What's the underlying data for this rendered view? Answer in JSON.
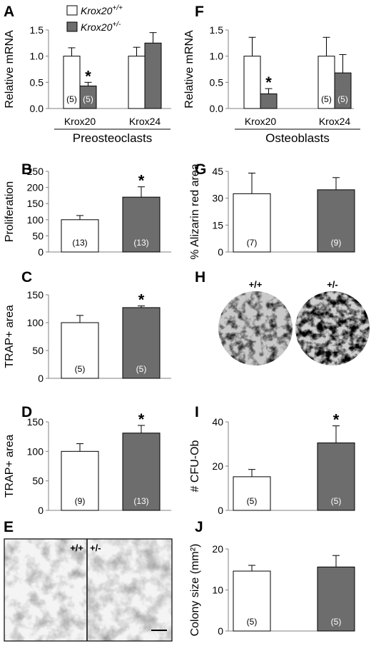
{
  "legend": {
    "wt_base": "Krox20",
    "wt_sup": "+/+",
    "het_base": "Krox20",
    "het_sup": "+/-"
  },
  "colors": {
    "wt": "#ffffff",
    "het": "#6d6d6d",
    "axis": "#808080",
    "text": "#000000"
  },
  "micrograph_labels": {
    "E_wt": "+/+",
    "E_het": "+/-",
    "H_wt": "+/+",
    "H_het": "+/-"
  },
  "chart_data": [
    {
      "panel": "A",
      "type": "bar",
      "ylabel": "Relative mRNA",
      "ylim": [
        0,
        1.5
      ],
      "yticks": [
        "0.0",
        "0.5",
        "1.0",
        "1.5"
      ],
      "categories": [
        "Krox20",
        "Krox24"
      ],
      "group_label": "Preosteoclasts",
      "series": [
        {
          "name": "Krox20+/+",
          "values": [
            1.0,
            1.0
          ],
          "errors": [
            0.16,
            0.17
          ],
          "n": [
            "(5)",
            ""
          ]
        },
        {
          "name": "Krox20+/-",
          "values": [
            0.43,
            1.25
          ],
          "errors": [
            0.07,
            0.2
          ],
          "n": [
            "(5)",
            ""
          ],
          "sig": [
            "*",
            ""
          ]
        }
      ]
    },
    {
      "panel": "F",
      "type": "bar",
      "ylabel": "Relative mRNA",
      "ylim": [
        0,
        1.5
      ],
      "yticks": [
        "0.0",
        "0.5",
        "1.0",
        "1.5"
      ],
      "categories": [
        "Krox20",
        "Krox24"
      ],
      "group_label": "Osteoblasts",
      "series": [
        {
          "name": "Krox20+/+",
          "values": [
            1.0,
            1.0
          ],
          "errors": [
            0.36,
            0.36
          ],
          "n": [
            "",
            "(5)"
          ]
        },
        {
          "name": "Krox20+/-",
          "values": [
            0.28,
            0.68
          ],
          "errors": [
            0.1,
            0.35
          ],
          "n": [
            "",
            "(5)"
          ],
          "sig": [
            "*",
            ""
          ]
        }
      ]
    },
    {
      "panel": "B",
      "type": "bar",
      "ylabel": "Proliferation",
      "ylim": [
        0,
        250
      ],
      "yticks": [
        "0",
        "50",
        "100",
        "150",
        "200",
        "250"
      ],
      "series": [
        {
          "name": "Krox20+/+",
          "values": [
            100
          ],
          "errors": [
            13
          ],
          "n": [
            "(13)"
          ]
        },
        {
          "name": "Krox20+/-",
          "values": [
            170
          ],
          "errors": [
            32
          ],
          "n": [
            "(13)"
          ],
          "sig": [
            "*"
          ]
        }
      ]
    },
    {
      "panel": "G",
      "type": "bar",
      "ylabel": "% Alizarin red area",
      "ylim": [
        0,
        45
      ],
      "yticks": [
        "0",
        "15",
        "30",
        "45"
      ],
      "series": [
        {
          "name": "Krox20+/+",
          "values": [
            32.5
          ],
          "errors": [
            11.5
          ],
          "n": [
            "(7)"
          ]
        },
        {
          "name": "Krox20+/-",
          "values": [
            34.7
          ],
          "errors": [
            6.8
          ],
          "n": [
            "(9)"
          ]
        }
      ]
    },
    {
      "panel": "C",
      "type": "bar",
      "ylabel": "TRAP+ area",
      "ylim": [
        0,
        150
      ],
      "yticks": [
        "0",
        "50",
        "100",
        "150"
      ],
      "series": [
        {
          "name": "Krox20+/+",
          "values": [
            100
          ],
          "errors": [
            13
          ],
          "n": [
            "(5)"
          ]
        },
        {
          "name": "Krox20+/-",
          "values": [
            127
          ],
          "errors": [
            3
          ],
          "n": [
            "(5)"
          ],
          "sig": [
            "*"
          ]
        }
      ]
    },
    {
      "panel": "D",
      "type": "bar",
      "ylabel": "TRAP+ area",
      "ylim": [
        0,
        150
      ],
      "yticks": [
        "0",
        "50",
        "100",
        "150"
      ],
      "series": [
        {
          "name": "Krox20+/+",
          "values": [
            100
          ],
          "errors": [
            13
          ],
          "n": [
            "(9)"
          ]
        },
        {
          "name": "Krox20+/-",
          "values": [
            131
          ],
          "errors": [
            13
          ],
          "n": [
            "(13)"
          ],
          "sig": [
            "*"
          ]
        }
      ]
    },
    {
      "panel": "I",
      "type": "bar",
      "ylabel": "# CFU-Ob",
      "ylim": [
        0,
        40
      ],
      "yticks": [
        "0",
        "20",
        "40"
      ],
      "series": [
        {
          "name": "Krox20+/+",
          "values": [
            15.2
          ],
          "errors": [
            3.3
          ],
          "n": [
            "(5)"
          ]
        },
        {
          "name": "Krox20+/-",
          "values": [
            30.5
          ],
          "errors": [
            7.7
          ],
          "n": [
            "(5)"
          ],
          "sig": [
            "*"
          ]
        }
      ]
    },
    {
      "panel": "J",
      "type": "bar",
      "ylabel": "Colony size (mm²)",
      "ylim": [
        0,
        20
      ],
      "yticks": [
        "0",
        "10",
        "20"
      ],
      "series": [
        {
          "name": "Krox20+/+",
          "values": [
            14.6
          ],
          "errors": [
            1.4
          ],
          "n": [
            "(5)"
          ]
        },
        {
          "name": "Krox20+/-",
          "values": [
            15.6
          ],
          "errors": [
            2.8
          ],
          "n": [
            "(5)"
          ]
        }
      ]
    }
  ]
}
